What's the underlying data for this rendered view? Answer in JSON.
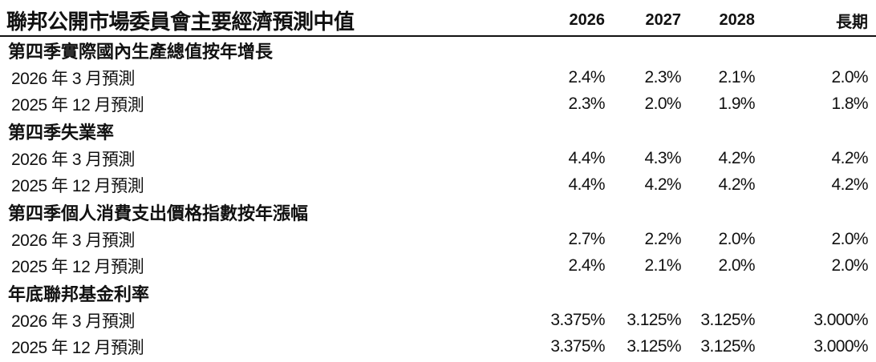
{
  "title": "聯邦公開市場委員會主要經濟預測中值",
  "columns": [
    "2026",
    "2027",
    "2028",
    "長期"
  ],
  "sections": [
    {
      "heading": "第四季實際國內生產總值按年增長",
      "rows": [
        {
          "label": "2026 年 3 月預測",
          "values": [
            "2.4%",
            "2.3%",
            "2.1%",
            "2.0%"
          ]
        },
        {
          "label": "2025 年 12 月預測",
          "values": [
            "2.3%",
            "2.0%",
            "1.9%",
            "1.8%"
          ]
        }
      ]
    },
    {
      "heading": "第四季失業率",
      "rows": [
        {
          "label": "2026 年 3 月預測",
          "values": [
            "4.4%",
            "4.3%",
            "4.2%",
            "4.2%"
          ]
        },
        {
          "label": "2025 年 12 月預測",
          "values": [
            "4.4%",
            "4.2%",
            "4.2%",
            "4.2%"
          ]
        }
      ]
    },
    {
      "heading": "第四季個人消費支出價格指數按年漲幅",
      "rows": [
        {
          "label": "2026 年 3 月預測",
          "values": [
            "2.7%",
            "2.2%",
            "2.0%",
            "2.0%"
          ]
        },
        {
          "label": "2025 年 12 月預測",
          "values": [
            "2.4%",
            "2.1%",
            "2.0%",
            "2.0%"
          ]
        }
      ]
    },
    {
      "heading": "年底聯邦基金利率",
      "rows": [
        {
          "label": "2026 年 3 月預測",
          "values": [
            "3.375%",
            "3.125%",
            "3.125%",
            "3.000%"
          ]
        },
        {
          "label": "2025 年 12 月預測",
          "values": [
            "3.375%",
            "3.125%",
            "3.125%",
            "3.000%"
          ]
        }
      ]
    }
  ]
}
